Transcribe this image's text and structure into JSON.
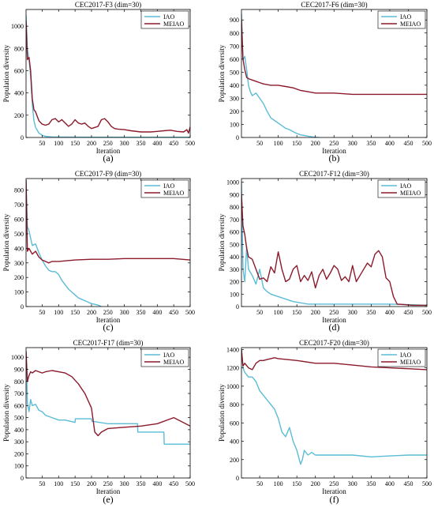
{
  "colors": {
    "IAO": "#5bbcd6",
    "MEIAO": "#8b1a2b"
  },
  "chart_data": [
    {
      "type": "line",
      "title": "CEC2017-F3 (dim=30)",
      "xlabel": "Iteration",
      "ylabel": "Population diversity",
      "caption": "(a)",
      "xlim": [
        1,
        500
      ],
      "ylim": [
        0,
        1150
      ],
      "xticks": [
        50,
        100,
        150,
        200,
        250,
        300,
        350,
        400,
        450,
        500
      ],
      "yticks": [
        0,
        200,
        400,
        600,
        800,
        1000
      ],
      "legend": "top-right",
      "series": [
        {
          "name": "IAO",
          "color": "#5bbcd6",
          "x": [
            1,
            5,
            10,
            15,
            20,
            25,
            30,
            40,
            50,
            60,
            80,
            100,
            150,
            200,
            300,
            400,
            500
          ],
          "y": [
            1100,
            800,
            700,
            550,
            300,
            150,
            90,
            40,
            20,
            10,
            5,
            4,
            3,
            2,
            2,
            2,
            2
          ]
        },
        {
          "name": "MEIAO",
          "color": "#8b1a2b",
          "x": [
            1,
            5,
            10,
            15,
            20,
            25,
            30,
            40,
            50,
            60,
            70,
            80,
            90,
            100,
            110,
            120,
            130,
            140,
            150,
            160,
            170,
            180,
            190,
            200,
            210,
            220,
            230,
            240,
            250,
            260,
            270,
            280,
            300,
            320,
            350,
            380,
            400,
            420,
            440,
            460,
            480,
            490,
            495,
            500
          ],
          "y": [
            1050,
            700,
            720,
            600,
            350,
            250,
            230,
            150,
            120,
            110,
            120,
            160,
            170,
            140,
            160,
            130,
            100,
            120,
            160,
            130,
            120,
            130,
            100,
            80,
            90,
            100,
            160,
            170,
            140,
            100,
            80,
            75,
            70,
            60,
            50,
            50,
            55,
            60,
            65,
            55,
            50,
            70,
            40,
            95
          ]
        }
      ]
    },
    {
      "type": "line",
      "title": "CEC2017-F6 (dim=30)",
      "xlabel": "Iteration",
      "ylabel": "Population diversity",
      "caption": "(b)",
      "xlim": [
        1,
        500
      ],
      "ylim": [
        0,
        980
      ],
      "xticks": [
        50,
        100,
        150,
        200,
        250,
        300,
        350,
        400,
        450,
        500
      ],
      "yticks": [
        0,
        100,
        200,
        300,
        400,
        500,
        600,
        700,
        800,
        900
      ],
      "legend": "top-right",
      "series": [
        {
          "name": "IAO",
          "color": "#5bbcd6",
          "x": [
            1,
            5,
            10,
            15,
            20,
            25,
            30,
            40,
            50,
            60,
            70,
            80,
            90,
            100,
            110,
            120,
            130,
            140,
            150,
            160,
            170,
            180,
            190,
            200,
            210
          ],
          "y": [
            950,
            600,
            620,
            520,
            400,
            350,
            320,
            340,
            300,
            260,
            200,
            150,
            130,
            110,
            90,
            70,
            60,
            45,
            30,
            20,
            15,
            10,
            5,
            2,
            0
          ]
        },
        {
          "name": "MEIAO",
          "color": "#8b1a2b",
          "x": [
            1,
            5,
            10,
            15,
            20,
            30,
            40,
            50,
            60,
            80,
            100,
            120,
            140,
            160,
            180,
            200,
            250,
            300,
            350,
            400,
            450,
            500
          ],
          "y": [
            900,
            600,
            520,
            460,
            450,
            440,
            430,
            420,
            410,
            400,
            400,
            390,
            380,
            360,
            350,
            340,
            340,
            330,
            330,
            330,
            330,
            330
          ]
        }
      ]
    },
    {
      "type": "line",
      "title": "CEC2017-F9 (dim=30)",
      "xlabel": "Iteration",
      "ylabel": "Population diversity",
      "caption": "(c)",
      "xlim": [
        1,
        500
      ],
      "ylim": [
        0,
        880
      ],
      "xticks": [
        50,
        100,
        150,
        200,
        250,
        300,
        350,
        400,
        450,
        500
      ],
      "yticks": [
        0,
        100,
        200,
        300,
        400,
        500,
        600,
        700,
        800
      ],
      "legend": "top-right",
      "series": [
        {
          "name": "IAO",
          "color": "#5bbcd6",
          "x": [
            1,
            5,
            10,
            15,
            20,
            30,
            40,
            50,
            60,
            70,
            80,
            90,
            100,
            110,
            120,
            130,
            140,
            150,
            160,
            170,
            180,
            190,
            200,
            210,
            220,
            230
          ],
          "y": [
            870,
            550,
            520,
            470,
            420,
            430,
            370,
            320,
            280,
            250,
            240,
            240,
            220,
            180,
            150,
            120,
            100,
            80,
            60,
            50,
            40,
            30,
            20,
            15,
            10,
            0
          ]
        },
        {
          "name": "MEIAO",
          "color": "#8b1a2b",
          "x": [
            1,
            5,
            10,
            15,
            20,
            30,
            40,
            50,
            60,
            70,
            80,
            100,
            150,
            200,
            250,
            300,
            350,
            400,
            450,
            500
          ],
          "y": [
            870,
            380,
            400,
            380,
            360,
            380,
            340,
            320,
            310,
            300,
            310,
            310,
            320,
            325,
            325,
            330,
            330,
            330,
            330,
            320
          ]
        }
      ]
    },
    {
      "type": "line",
      "title": "CEC2017-F12 (dim=30)",
      "xlabel": "Iteration",
      "ylabel": "Population diversity",
      "caption": "(d)",
      "xlim": [
        1,
        500
      ],
      "ylim": [
        0,
        1030
      ],
      "xticks": [
        50,
        100,
        150,
        200,
        250,
        300,
        350,
        400,
        450,
        500
      ],
      "yticks": [
        0,
        100,
        200,
        300,
        400,
        500,
        600,
        700,
        800,
        900,
        1000
      ],
      "legend": "top-right",
      "series": [
        {
          "name": "IAO",
          "color": "#5bbcd6",
          "x": [
            1,
            5,
            10,
            15,
            20,
            30,
            40,
            50,
            60,
            70,
            80,
            100,
            120,
            140,
            160,
            180,
            200,
            250,
            300,
            350,
            400,
            450,
            500
          ],
          "y": [
            1000,
            300,
            200,
            480,
            300,
            250,
            180,
            300,
            150,
            120,
            100,
            80,
            60,
            40,
            30,
            20,
            20,
            20,
            20,
            20,
            20,
            15,
            10
          ]
        },
        {
          "name": "MEIAO",
          "color": "#8b1a2b",
          "x": [
            1,
            5,
            10,
            15,
            20,
            30,
            40,
            50,
            60,
            70,
            80,
            90,
            100,
            110,
            120,
            130,
            140,
            150,
            160,
            170,
            180,
            190,
            200,
            210,
            220,
            230,
            240,
            250,
            260,
            270,
            280,
            290,
            300,
            310,
            320,
            330,
            340,
            350,
            360,
            370,
            380,
            390,
            400,
            410,
            420,
            440,
            460,
            480,
            500
          ],
          "y": [
            900,
            650,
            580,
            470,
            400,
            380,
            300,
            220,
            230,
            200,
            320,
            270,
            440,
            300,
            200,
            220,
            300,
            330,
            200,
            250,
            210,
            280,
            150,
            250,
            300,
            220,
            270,
            330,
            300,
            210,
            240,
            200,
            330,
            200,
            250,
            300,
            350,
            320,
            420,
            450,
            400,
            230,
            200,
            80,
            20,
            15,
            10,
            10,
            10
          ]
        }
      ]
    },
    {
      "type": "line",
      "title": "CEC2017-F17 (dim=30)",
      "xlabel": "Iteration",
      "ylabel": "Population diversity",
      "caption": "(e)",
      "xlim": [
        1,
        500
      ],
      "ylim": [
        0,
        1080
      ],
      "xticks": [
        50,
        100,
        150,
        200,
        250,
        300,
        350,
        400,
        450,
        500
      ],
      "yticks": [
        0,
        100,
        200,
        300,
        400,
        500,
        600,
        700,
        800,
        900,
        1000
      ],
      "legend": "top-right",
      "series": [
        {
          "name": "IAO",
          "color": "#5bbcd6",
          "x": [
            1,
            5,
            10,
            15,
            20,
            30,
            40,
            50,
            60,
            80,
            100,
            120,
            150,
            151,
            200,
            201,
            250,
            300,
            340,
            341,
            400,
            420,
            421,
            500
          ],
          "y": [
            1050,
            620,
            550,
            650,
            600,
            610,
            560,
            550,
            520,
            500,
            480,
            480,
            460,
            490,
            490,
            470,
            450,
            450,
            450,
            380,
            380,
            380,
            280,
            280
          ]
        },
        {
          "name": "MEIAO",
          "color": "#8b1a2b",
          "x": [
            1,
            5,
            10,
            15,
            20,
            30,
            40,
            50,
            60,
            80,
            100,
            120,
            140,
            160,
            180,
            200,
            210,
            220,
            230,
            250,
            300,
            350,
            400,
            450,
            500
          ],
          "y": [
            1050,
            800,
            850,
            880,
            870,
            890,
            880,
            870,
            880,
            890,
            880,
            870,
            840,
            780,
            700,
            580,
            380,
            350,
            380,
            410,
            420,
            430,
            450,
            500,
            430
          ]
        }
      ]
    },
    {
      "type": "line",
      "title": "CEC2017-F20 (dim=30)",
      "xlabel": "Iteration",
      "ylabel": "Population diversity",
      "caption": "(f)",
      "xlim": [
        1,
        500
      ],
      "ylim": [
        0,
        1420
      ],
      "xticks": [
        50,
        100,
        150,
        200,
        250,
        300,
        350,
        400,
        450,
        500
      ],
      "yticks": [
        0,
        200,
        400,
        600,
        800,
        1000,
        1200,
        1400
      ],
      "legend": "top-right",
      "series": [
        {
          "name": "IAO",
          "color": "#5bbcd6",
          "x": [
            1,
            5,
            10,
            20,
            30,
            40,
            50,
            60,
            70,
            80,
            90,
            100,
            110,
            120,
            130,
            140,
            150,
            160,
            165,
            170,
            180,
            190,
            200,
            250,
            300,
            350,
            400,
            450,
            500
          ],
          "y": [
            1400,
            1200,
            1150,
            1100,
            1100,
            1050,
            950,
            900,
            850,
            800,
            750,
            650,
            500,
            450,
            550,
            400,
            300,
            150,
            200,
            300,
            250,
            280,
            250,
            250,
            250,
            230,
            240,
            250,
            250
          ]
        },
        {
          "name": "MEIAO",
          "color": "#8b1a2b",
          "x": [
            1,
            5,
            10,
            20,
            30,
            40,
            50,
            60,
            70,
            80,
            90,
            100,
            150,
            200,
            250,
            300,
            350,
            400,
            450,
            500
          ],
          "y": [
            1400,
            1220,
            1250,
            1200,
            1180,
            1250,
            1280,
            1280,
            1290,
            1300,
            1310,
            1300,
            1280,
            1250,
            1250,
            1230,
            1210,
            1200,
            1190,
            1180
          ]
        }
      ]
    }
  ]
}
